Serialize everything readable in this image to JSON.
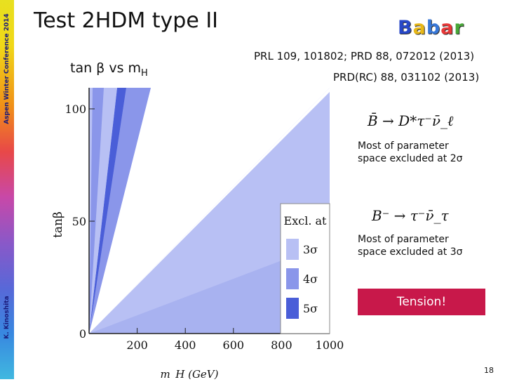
{
  "sidebar": {
    "conference": "Aspen Winter Conference 2014",
    "author": "K. Kinoshita"
  },
  "slide": {
    "title": "Test 2HDM type II",
    "logo_letters": [
      "B",
      "a",
      "b",
      "a",
      "r"
    ],
    "logo_colors": [
      "#2848c8",
      "#e8b818",
      "#3878d8",
      "#e83838",
      "#48a838"
    ],
    "reference_1": "PRL 109, 101802; PRD 88, 072012 (2013)",
    "reference_2": "PRD(RC) 88, 031102 (2013)",
    "subtitle_main": "tan β vs m",
    "subtitle_sub": "H",
    "formula_1": "B̄ → D*τ⁻ν̄_ℓ",
    "note_1_line1": "Most of parameter",
    "note_1_line2": "space excluded at 2σ",
    "formula_2": "B⁻ → τ⁻ν̄_τ",
    "note_2_line1": "Most of parameter",
    "note_2_line2": "space excluded at 3σ",
    "tension": "Tension!",
    "page_number": "18"
  },
  "chart_data": {
    "type": "area",
    "xlabel": "m_H (GeV)",
    "ylabel": "tanβ",
    "x_ticks": [
      "200",
      "400",
      "600",
      "800",
      "1000"
    ],
    "y_ticks": [
      "0",
      "50",
      "100"
    ],
    "xlim": [
      0,
      1000
    ],
    "ylim": [
      0,
      100
    ],
    "legend": {
      "title": "Excl. at",
      "entries": [
        "3σ",
        "4σ",
        "5σ"
      ],
      "colors": [
        "#b8c0f4",
        "#8a96ea",
        "#4a5ed8"
      ],
      "placement": "bottom-right"
    },
    "colors": {
      "allowed": "#ffffff",
      "excluded_3sigma": "#b8c0f4",
      "excluded_4sigma": "#8a96ea",
      "excluded_5sigma": "#4a5ed8"
    }
  }
}
